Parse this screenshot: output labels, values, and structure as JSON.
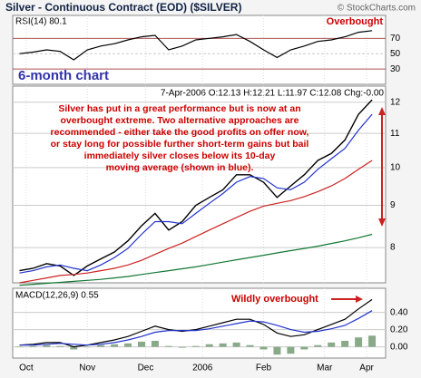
{
  "header": {
    "title": "Silver - Continuous Contract (EOD) ($SILVER)",
    "credit": "© StockCharts.com"
  },
  "chart_data": [
    {
      "type": "line",
      "label": "RSI(14) 80.1",
      "annotation": "Overbought",
      "caption": "6-month chart",
      "ylim": [
        10,
        100
      ],
      "yticks": [
        70,
        50,
        30
      ],
      "series": [
        {
          "color": "#000000",
          "values": [
            50,
            52,
            55,
            53,
            42,
            55,
            60,
            63,
            68,
            72,
            74,
            55,
            60,
            68,
            70,
            72,
            75,
            66,
            55,
            45,
            55,
            60,
            66,
            68,
            72,
            78,
            80.1
          ]
        }
      ]
    },
    {
      "type": "line",
      "info": "7-Apr-2006 O:12.13 H:12.21 L:11.97 C:12.08 Chg:-0.00",
      "annotation": [
        "Silver has put in a great performance but is now at an",
        "overbought extreme. Two alternative approaches are",
        "recommended - either take the good profits on offer now,",
        "or stay long for possible further short-term gains but bail",
        "immediately silver closes below its 10-day",
        "moving average (shown in blue)."
      ],
      "log_scale": true,
      "ylim": [
        7.25,
        12.55
      ],
      "yticks": [
        12,
        11,
        10,
        9,
        8
      ],
      "series": [
        {
          "color": "#000000",
          "values": [
            7.5,
            7.55,
            7.65,
            7.6,
            7.4,
            7.6,
            7.75,
            7.9,
            8.15,
            8.5,
            8.8,
            8.4,
            8.6,
            9.0,
            9.2,
            9.4,
            9.8,
            9.8,
            9.6,
            9.2,
            9.5,
            9.8,
            10.2,
            10.4,
            10.8,
            11.6,
            12.08
          ]
        },
        {
          "color": "#2233cc",
          "values": [
            7.45,
            7.5,
            7.58,
            7.62,
            7.55,
            7.5,
            7.62,
            7.78,
            7.98,
            8.3,
            8.6,
            8.6,
            8.55,
            8.8,
            9.05,
            9.3,
            9.6,
            9.75,
            9.7,
            9.45,
            9.4,
            9.6,
            9.95,
            10.25,
            10.55,
            11.1,
            11.6
          ]
        },
        {
          "color": "#cc2222",
          "values": [
            7.25,
            7.3,
            7.35,
            7.4,
            7.42,
            7.45,
            7.5,
            7.55,
            7.62,
            7.72,
            7.85,
            7.98,
            8.1,
            8.25,
            8.4,
            8.55,
            8.7,
            8.85,
            8.98,
            9.05,
            9.12,
            9.22,
            9.35,
            9.5,
            9.7,
            9.95,
            10.2
          ]
        },
        {
          "color": "#117733",
          "values": [
            7.2,
            7.22,
            7.24,
            7.26,
            7.28,
            7.3,
            7.32,
            7.35,
            7.38,
            7.42,
            7.46,
            7.5,
            7.54,
            7.58,
            7.63,
            7.68,
            7.73,
            7.78,
            7.83,
            7.88,
            7.93,
            7.98,
            8.03,
            8.09,
            8.15,
            8.22,
            8.3
          ]
        }
      ]
    },
    {
      "type": "line",
      "label": "MACD(12,26,9) 0.55",
      "annotation": "Wildly overbought",
      "ylim": [
        -0.13,
        0.68
      ],
      "yticks": [
        {
          "value": 0.4,
          "label": "0.40"
        },
        {
          "value": 0.2,
          "label": "0.20"
        },
        {
          "value": 0,
          "label": "0.00"
        }
      ],
      "xlim": [
        -0.5,
        27
      ],
      "xticks": [
        {
          "value": 0.5,
          "label": "Oct"
        },
        {
          "value": 5,
          "label": "Nov"
        },
        {
          "value": 9.3,
          "label": "Dec"
        },
        {
          "value": 13.5,
          "label": "2006"
        },
        {
          "value": 18,
          "label": "Feb"
        },
        {
          "value": 22.5,
          "label": "Mar"
        },
        {
          "value": 25.6,
          "label": "Apr"
        }
      ],
      "series": [
        {
          "type": "bar",
          "color": "#88aa88",
          "values": [
            0,
            0.01,
            0.02,
            0.01,
            -0.03,
            0,
            0.02,
            0.03,
            0.04,
            0.06,
            0.07,
            0.01,
            -0.01,
            0.01,
            0.03,
            0.04,
            0.05,
            0.02,
            -0.03,
            -0.09,
            -0.08,
            -0.03,
            0.02,
            0.05,
            0.07,
            0.11,
            0.13
          ]
        },
        {
          "color": "#000000",
          "values": [
            0.02,
            0.03,
            0.05,
            0.05,
            0.0,
            0.02,
            0.05,
            0.08,
            0.12,
            0.18,
            0.24,
            0.2,
            0.18,
            0.2,
            0.24,
            0.28,
            0.32,
            0.32,
            0.26,
            0.16,
            0.12,
            0.14,
            0.2,
            0.26,
            0.32,
            0.44,
            0.55
          ]
        },
        {
          "color": "#2233cc",
          "values": [
            0.02,
            0.02,
            0.03,
            0.04,
            0.03,
            0.02,
            0.03,
            0.05,
            0.08,
            0.12,
            0.17,
            0.19,
            0.19,
            0.19,
            0.21,
            0.24,
            0.27,
            0.3,
            0.29,
            0.25,
            0.2,
            0.17,
            0.18,
            0.21,
            0.25,
            0.33,
            0.42
          ]
        }
      ]
    }
  ]
}
